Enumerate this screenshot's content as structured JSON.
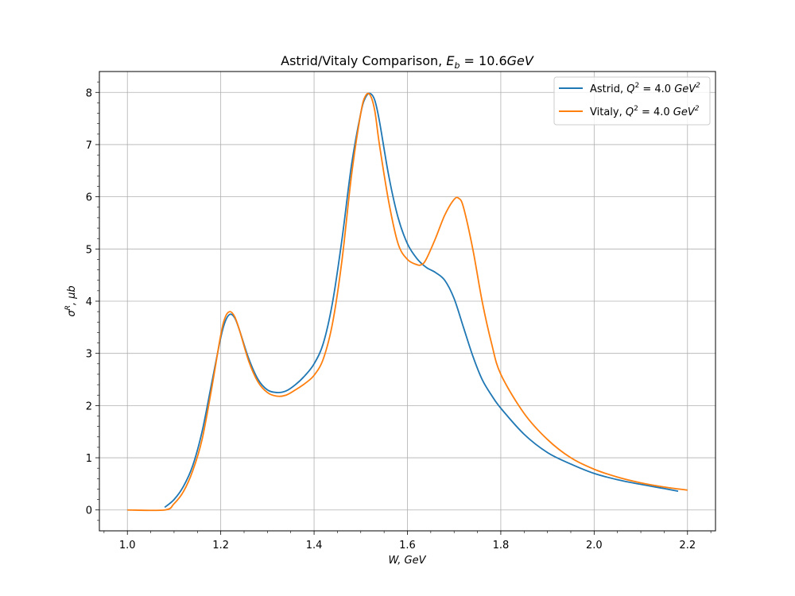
{
  "chart_data": {
    "type": "line",
    "title": "Astrid/Vitaly Comparison, E_b = 10.6GeV",
    "xlabel": "W, GeV",
    "ylabel": "σ^R, μb",
    "xlim": [
      0.94,
      2.26
    ],
    "ylim": [
      -0.4,
      8.4
    ],
    "xticks": [
      "1.0",
      "1.2",
      "1.4",
      "1.6",
      "1.8",
      "2.0",
      "2.2"
    ],
    "yticks": [
      "0",
      "1",
      "2",
      "3",
      "4",
      "5",
      "6",
      "7",
      "8"
    ],
    "grid": true,
    "legend_position": "top-right",
    "series": [
      {
        "name": "Astrid, Q^2 = 4.0 GeV^2",
        "color": "#1f77b4",
        "x": [
          1.08,
          1.1,
          1.12,
          1.14,
          1.16,
          1.18,
          1.2,
          1.21,
          1.22,
          1.23,
          1.24,
          1.26,
          1.28,
          1.3,
          1.32,
          1.34,
          1.36,
          1.38,
          1.4,
          1.42,
          1.44,
          1.46,
          1.48,
          1.5,
          1.51,
          1.52,
          1.53,
          1.54,
          1.56,
          1.58,
          1.6,
          1.62,
          1.64,
          1.66,
          1.68,
          1.7,
          1.72,
          1.74,
          1.76,
          1.78,
          1.8,
          1.85,
          1.9,
          1.95,
          2.0,
          2.05,
          2.1,
          2.15,
          2.18
        ],
        "y": [
          0.05,
          0.2,
          0.45,
          0.85,
          1.5,
          2.4,
          3.3,
          3.62,
          3.75,
          3.68,
          3.45,
          2.9,
          2.5,
          2.3,
          2.25,
          2.28,
          2.4,
          2.57,
          2.8,
          3.2,
          4.0,
          5.2,
          6.6,
          7.6,
          7.9,
          7.98,
          7.85,
          7.45,
          6.4,
          5.6,
          5.1,
          4.82,
          4.65,
          4.55,
          4.4,
          4.05,
          3.5,
          2.95,
          2.5,
          2.2,
          1.95,
          1.45,
          1.1,
          0.88,
          0.7,
          0.58,
          0.49,
          0.41,
          0.36
        ]
      },
      {
        "name": "Vitaly, Q^2 = 4.0 GeV^2",
        "color": "#ff7f0e",
        "x": [
          1.0,
          1.08,
          1.1,
          1.12,
          1.14,
          1.16,
          1.18,
          1.2,
          1.21,
          1.22,
          1.23,
          1.24,
          1.26,
          1.28,
          1.3,
          1.32,
          1.34,
          1.36,
          1.38,
          1.4,
          1.42,
          1.44,
          1.46,
          1.48,
          1.5,
          1.51,
          1.52,
          1.53,
          1.54,
          1.56,
          1.58,
          1.6,
          1.62,
          1.63,
          1.64,
          1.66,
          1.68,
          1.7,
          1.71,
          1.72,
          1.74,
          1.76,
          1.78,
          1.8,
          1.85,
          1.9,
          1.95,
          2.0,
          2.05,
          2.1,
          2.15,
          2.2
        ],
        "y": [
          0.0,
          0.0,
          0.12,
          0.35,
          0.75,
          1.35,
          2.3,
          3.35,
          3.7,
          3.8,
          3.7,
          3.45,
          2.85,
          2.45,
          2.25,
          2.18,
          2.2,
          2.3,
          2.42,
          2.58,
          2.9,
          3.6,
          4.8,
          6.4,
          7.6,
          7.93,
          7.95,
          7.65,
          7.0,
          5.9,
          5.1,
          4.8,
          4.7,
          4.7,
          4.8,
          5.2,
          5.65,
          5.95,
          5.97,
          5.8,
          5.0,
          4.0,
          3.2,
          2.6,
          1.85,
          1.35,
          1.0,
          0.78,
          0.63,
          0.52,
          0.44,
          0.38
        ]
      }
    ]
  }
}
